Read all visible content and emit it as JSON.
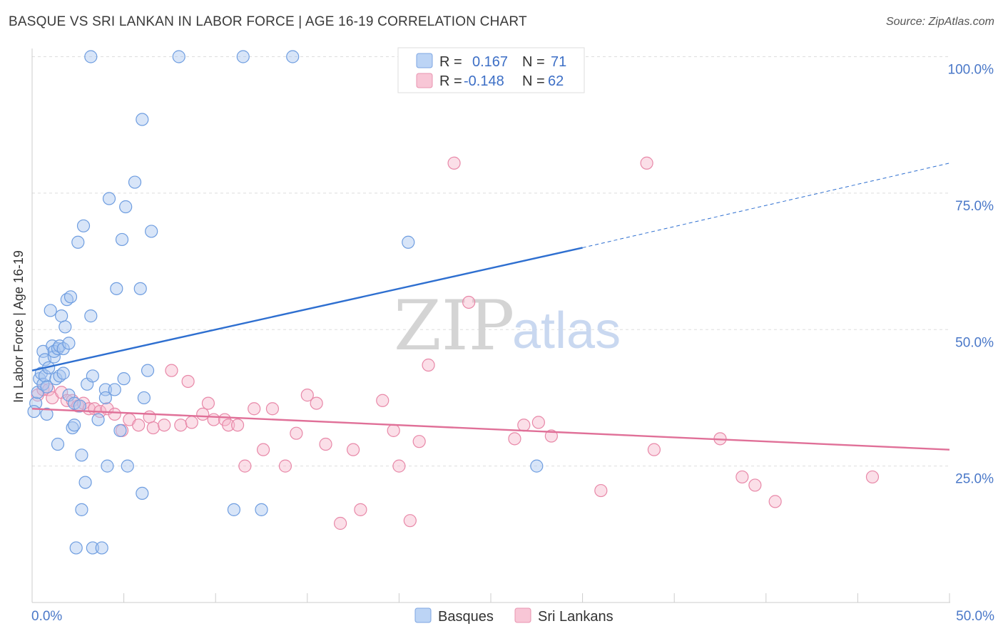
{
  "title": "BASQUE VS SRI LANKAN IN LABOR FORCE | AGE 16-19 CORRELATION CHART",
  "source": "Source: ZipAtlas.com",
  "watermark": {
    "zip": "ZIP",
    "atlas": "atlas"
  },
  "legend": {
    "rows": [
      {
        "r_label": "R =",
        "r_value": "0.167",
        "n_label": "N =",
        "n_value": "71",
        "color": "#a8c6f0",
        "stroke": "#6e9de0"
      },
      {
        "r_label": "R =",
        "r_value": "-0.148",
        "n_label": "N =",
        "n_value": "62",
        "color": "#f6b8cb",
        "stroke": "#e888a8"
      }
    ]
  },
  "bottom_legend": {
    "items": [
      "Basques",
      "Sri Lankans"
    ]
  },
  "chart_data": {
    "type": "scatter",
    "title": "BASQUE VS SRI LANKAN IN LABOR FORCE | AGE 16-19 CORRELATION CHART",
    "xlabel": "",
    "ylabel": "In Labor Force | Age 16-19",
    "xlim": [
      0,
      50
    ],
    "ylim": [
      0,
      105
    ],
    "x_tick_labels": [
      "0.0%",
      "50.0%"
    ],
    "y_ticks": [
      25,
      50,
      75,
      100
    ],
    "y_tick_labels": [
      "25.0%",
      "50.0%",
      "75.0%",
      "100.0%"
    ],
    "grid": true,
    "legend_position": "top-center",
    "colors": {
      "Basques": "#6e9de0",
      "Sri Lankans": "#e888a8",
      "basque_line": "#2e6fd0",
      "srilankan_line": "#e07098"
    },
    "series": [
      {
        "name": "Basques",
        "R": 0.167,
        "N": 71,
        "trend": {
          "x0": 0,
          "y0": 42.5,
          "x1": 30,
          "y1": 65,
          "dashed_to_x": 50,
          "dashed_to_y": 80.5
        },
        "points": [
          [
            0.2,
            36.5
          ],
          [
            0.3,
            38.5
          ],
          [
            0.4,
            41
          ],
          [
            0.5,
            42
          ],
          [
            0.6,
            40
          ],
          [
            0.7,
            41.5
          ],
          [
            0.6,
            46
          ],
          [
            0.7,
            44.5
          ],
          [
            0.8,
            34.5
          ],
          [
            0.8,
            39.5
          ],
          [
            1.0,
            53.5
          ],
          [
            1.1,
            47
          ],
          [
            1.2,
            45
          ],
          [
            1.2,
            46
          ],
          [
            1.3,
            41
          ],
          [
            1.4,
            46.5
          ],
          [
            1.4,
            29
          ],
          [
            1.5,
            41.5
          ],
          [
            1.5,
            47
          ],
          [
            1.6,
            52.5
          ],
          [
            1.7,
            46.5
          ],
          [
            1.8,
            50.5
          ],
          [
            1.9,
            55.5
          ],
          [
            2.0,
            38
          ],
          [
            2.0,
            47.5
          ],
          [
            2.1,
            56
          ],
          [
            2.2,
            32
          ],
          [
            2.3,
            36.5
          ],
          [
            2.3,
            32.5
          ],
          [
            2.4,
            10
          ],
          [
            2.5,
            66
          ],
          [
            2.7,
            17
          ],
          [
            2.7,
            27
          ],
          [
            2.8,
            69
          ],
          [
            2.9,
            22
          ],
          [
            3.0,
            40
          ],
          [
            3.2,
            100
          ],
          [
            3.2,
            52.5
          ],
          [
            3.3,
            41.5
          ],
          [
            3.3,
            10
          ],
          [
            3.6,
            33.5
          ],
          [
            3.8,
            10
          ],
          [
            4.0,
            39
          ],
          [
            4.0,
            37.5
          ],
          [
            4.1,
            25
          ],
          [
            4.2,
            74
          ],
          [
            4.5,
            39
          ],
          [
            4.6,
            57.5
          ],
          [
            4.8,
            31.5
          ],
          [
            4.9,
            66.5
          ],
          [
            5.0,
            41
          ],
          [
            5.1,
            72.5
          ],
          [
            5.2,
            25
          ],
          [
            5.6,
            77
          ],
          [
            5.9,
            57.5
          ],
          [
            6.0,
            88.5
          ],
          [
            6.0,
            20
          ],
          [
            6.1,
            37.5
          ],
          [
            6.3,
            42.5
          ],
          [
            6.5,
            68
          ],
          [
            8.0,
            100
          ],
          [
            11.0,
            17
          ],
          [
            11.5,
            100
          ],
          [
            12.5,
            17
          ],
          [
            14.2,
            100
          ],
          [
            20.5,
            66
          ],
          [
            27.5,
            25
          ],
          [
            0.1,
            35
          ],
          [
            0.9,
            43
          ],
          [
            1.7,
            42
          ],
          [
            2.6,
            36
          ]
        ]
      },
      {
        "name": "Sri Lankans",
        "R": -0.148,
        "N": 62,
        "trend": {
          "x0": 0,
          "y0": 35.5,
          "x1": 50,
          "y1": 28
        },
        "points": [
          [
            0.3,
            38
          ],
          [
            0.6,
            39
          ],
          [
            0.9,
            39
          ],
          [
            1.1,
            37.5
          ],
          [
            1.6,
            38.5
          ],
          [
            1.9,
            37
          ],
          [
            2.2,
            37
          ],
          [
            2.5,
            36
          ],
          [
            2.8,
            36.5
          ],
          [
            3.1,
            35.5
          ],
          [
            3.4,
            35.5
          ],
          [
            3.7,
            35
          ],
          [
            4.1,
            35.5
          ],
          [
            4.5,
            34.5
          ],
          [
            4.9,
            31.5
          ],
          [
            5.3,
            33.5
          ],
          [
            5.8,
            32.5
          ],
          [
            6.4,
            34
          ],
          [
            6.6,
            32
          ],
          [
            7.2,
            32.5
          ],
          [
            7.6,
            42.5
          ],
          [
            8.1,
            32.5
          ],
          [
            8.5,
            40.5
          ],
          [
            8.7,
            33
          ],
          [
            9.3,
            34.5
          ],
          [
            9.6,
            36.5
          ],
          [
            9.9,
            33.5
          ],
          [
            10.5,
            33.5
          ],
          [
            10.7,
            32.5
          ],
          [
            11.2,
            32.5
          ],
          [
            11.6,
            25
          ],
          [
            12.1,
            35.5
          ],
          [
            12.6,
            28
          ],
          [
            13.1,
            35.5
          ],
          [
            13.8,
            25
          ],
          [
            14.4,
            31
          ],
          [
            15.0,
            38
          ],
          [
            15.5,
            36.5
          ],
          [
            16.0,
            29
          ],
          [
            16.8,
            14.5
          ],
          [
            17.5,
            28
          ],
          [
            17.9,
            17
          ],
          [
            19.1,
            37
          ],
          [
            19.7,
            31.5
          ],
          [
            20.0,
            25
          ],
          [
            20.6,
            15
          ],
          [
            21.1,
            29.5
          ],
          [
            21.6,
            43.5
          ],
          [
            23.0,
            80.5
          ],
          [
            23.8,
            55
          ],
          [
            26.3,
            30
          ],
          [
            26.8,
            32.5
          ],
          [
            27.6,
            33
          ],
          [
            28.3,
            30.5
          ],
          [
            31.0,
            20.5
          ],
          [
            33.5,
            80.5
          ],
          [
            33.9,
            28
          ],
          [
            37.5,
            30
          ],
          [
            38.7,
            23
          ],
          [
            39.4,
            21.5
          ],
          [
            40.5,
            18.5
          ],
          [
            45.8,
            23
          ]
        ]
      }
    ]
  }
}
